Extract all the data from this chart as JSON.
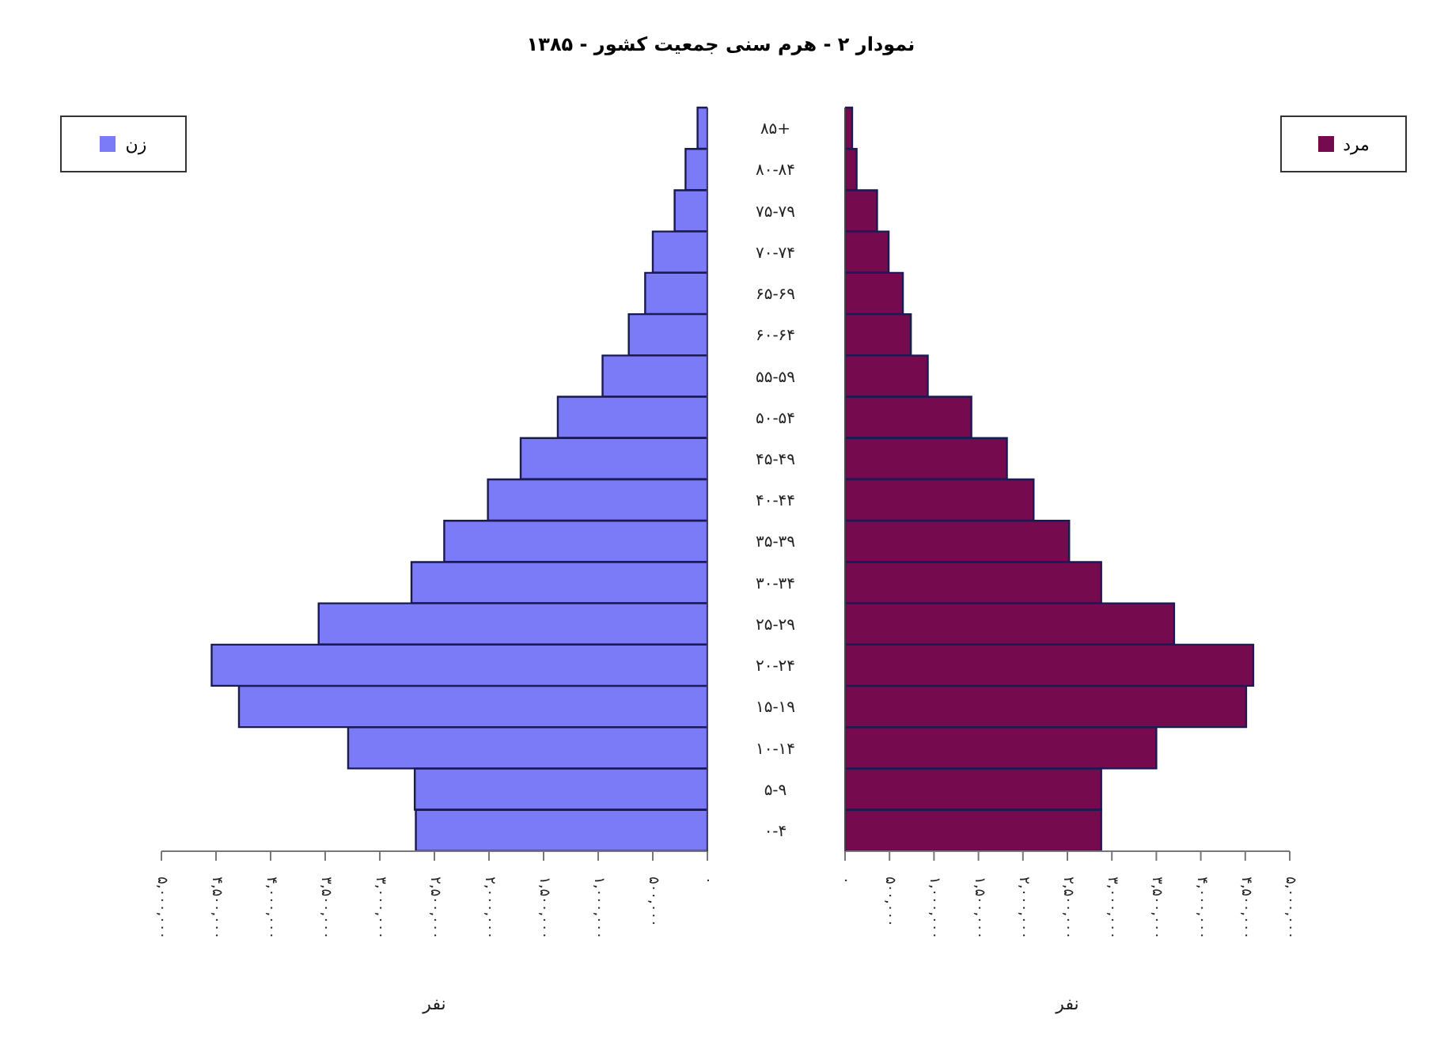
{
  "chart_data": [
    {
      "type": "bar",
      "orientation": "horizontal",
      "title": "نمودار ۲ - هرم سنی جمعیت کشور - ۱۳۸۵",
      "xlabel": "نفر",
      "categories": [
        null,
        null,
        null,
        null,
        null,
        null,
        null,
        null,
        null,
        null,
        null,
        null,
        null,
        null,
        null,
        null,
        null,
        null
      ],
      "series": [
        {
          "name": "زن",
          "color": "#7b7bf7",
          "values": [
            90000,
            200000,
            300000,
            500000,
            570000,
            720000,
            960000,
            1370000,
            1710000,
            2010000,
            2410000,
            2710000,
            3560000,
            4540000,
            4290000,
            3290000,
            2680000,
            2670000
          ]
        }
      ],
      "xlim": [
        5000000,
        0
      ],
      "xticks": [
        {
          "value": 5000000,
          "label": "۵,۰۰۰,۰۰۰"
        },
        {
          "value": 4500000,
          "label": "۴,۵۰۰,۰۰۰"
        },
        {
          "value": 4000000,
          "label": "۴,۰۰۰,۰۰۰"
        },
        {
          "value": 3500000,
          "label": "۳,۵۰۰,۰۰۰"
        },
        {
          "value": 3000000,
          "label": "۳,۰۰۰,۰۰۰"
        },
        {
          "value": 2500000,
          "label": "۲,۵۰۰,۰۰۰"
        },
        {
          "value": 2000000,
          "label": "۲,۰۰۰,۰۰۰"
        },
        {
          "value": 1500000,
          "label": "۱,۵۰۰,۰۰۰"
        },
        {
          "value": 1000000,
          "label": "۱,۰۰۰,۰۰۰"
        },
        {
          "value": 500000,
          "label": "۵۰۰,۰۰۰"
        },
        {
          "value": 0,
          "label": "۰"
        }
      ],
      "legend": "top left",
      "tick_labels": "x",
      "grid": false
    },
    {
      "type": "bar",
      "orientation": "horizontal",
      "xlabel": "نفر",
      "categories": [
        "۸۵+",
        "۸۰-۸۴",
        "۷۵-۷۹",
        "۷۰-۷۴",
        "۶۵-۶۹",
        "۶۰-۶۴",
        "۵۵-۵۹",
        "۵۰-۵۴",
        "۴۵-۴۹",
        "۴۰-۴۴",
        "۳۵-۳۹",
        "۳۰-۳۴",
        "۲۵-۲۹",
        "۲۰-۲۴",
        "۱۵-۱۹",
        "۱۰-۱۴",
        "۵-۹",
        "۰-۴"
      ],
      "series": [
        {
          "name": "مرد",
          "color": "#760a4e",
          "values": [
            80000,
            130000,
            360000,
            490000,
            650000,
            740000,
            930000,
            1420000,
            1820000,
            2120000,
            2520000,
            2880000,
            3700000,
            4590000,
            4510000,
            3500000,
            2880000,
            2880000
          ]
        }
      ],
      "xlim": [
        0,
        5000000
      ],
      "xticks": [
        {
          "value": 0,
          "label": "۰"
        },
        {
          "value": 500000,
          "label": "۵۰۰,۰۰۰"
        },
        {
          "value": 1000000,
          "label": "۱,۰۰۰,۰۰۰"
        },
        {
          "value": 1500000,
          "label": "۱,۵۰۰,۰۰۰"
        },
        {
          "value": 2000000,
          "label": "۲,۰۰۰,۰۰۰"
        },
        {
          "value": 2500000,
          "label": "۲,۵۰۰,۰۰۰"
        },
        {
          "value": 3000000,
          "label": "۳,۰۰۰,۰۰۰"
        },
        {
          "value": 3500000,
          "label": "۳,۵۰۰,۰۰۰"
        },
        {
          "value": 4000000,
          "label": "۴,۰۰۰,۰۰۰"
        },
        {
          "value": 4500000,
          "label": "۴,۵۰۰,۰۰۰"
        },
        {
          "value": 5000000,
          "label": "۵,۰۰۰,۰۰۰"
        }
      ],
      "legend": "top right",
      "grid": false
    }
  ]
}
